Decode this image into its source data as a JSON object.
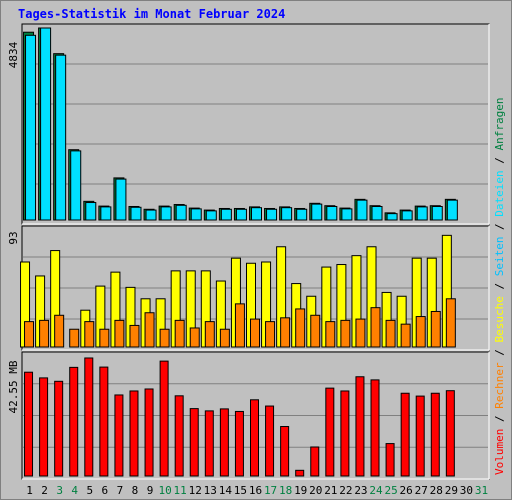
{
  "title": "Tages-Statistik im Monat Februar 2024",
  "days": [
    "1",
    "2",
    "3",
    "4",
    "5",
    "6",
    "7",
    "8",
    "9",
    "10",
    "11",
    "12",
    "13",
    "14",
    "15",
    "16",
    "17",
    "18",
    "19",
    "20",
    "21",
    "22",
    "23",
    "24",
    "25",
    "26",
    "27",
    "28",
    "29",
    "30",
    "31"
  ],
  "weekend_days": [
    "3",
    "4",
    "10",
    "11",
    "17",
    "18",
    "24",
    "25",
    "31"
  ],
  "right_legend": [
    "Volumen",
    "/",
    "Rechner",
    "/",
    "Besuche",
    "/",
    "Seiten",
    "/",
    "Dateien",
    "/",
    "Anfragen"
  ],
  "colors": {
    "background": "#c0c0c0",
    "plot_bg": "#c0c0c0",
    "anfragen": "#008040",
    "dateien": "#00e0ff",
    "seiten": "#00c0ff",
    "besuche": "#ffff00",
    "rechner": "#ff8000",
    "volumen": "#ff0000",
    "weekend_label": "#008040",
    "title": "#0000ff"
  },
  "chart_data": [
    {
      "type": "bar",
      "ylabel": "4834",
      "ylim": [
        0,
        4834
      ],
      "categories": [
        "1",
        "2",
        "3",
        "4",
        "5",
        "6",
        "7",
        "8",
        "9",
        "10",
        "11",
        "12",
        "13",
        "14",
        "15",
        "16",
        "17",
        "18",
        "19",
        "20",
        "21",
        "22",
        "23",
        "24",
        "25",
        "26",
        "27",
        "28",
        "29",
        "30",
        "31"
      ],
      "series": [
        {
          "name": "Anfragen",
          "values": [
            4728,
            4834,
            4188,
            1770,
            470,
            350,
            1060,
            340,
            270,
            350,
            390,
            300,
            250,
            290,
            290,
            330,
            290,
            330,
            290,
            420,
            360,
            300,
            520,
            360,
            180,
            250,
            350,
            360,
            520,
            null,
            null
          ]
        },
        {
          "name": "Dateien",
          "values": [
            4650,
            4834,
            4150,
            1740,
            440,
            330,
            1030,
            320,
            250,
            330,
            370,
            280,
            230,
            270,
            270,
            310,
            270,
            310,
            270,
            400,
            340,
            280,
            500,
            340,
            160,
            230,
            330,
            340,
            500,
            null,
            null
          ]
        }
      ]
    },
    {
      "type": "bar",
      "ylabel": "93",
      "ylim": [
        0,
        93
      ],
      "categories": [
        "1",
        "2",
        "3",
        "4",
        "5",
        "6",
        "7",
        "8",
        "9",
        "10",
        "11",
        "12",
        "13",
        "14",
        "15",
        "16",
        "17",
        "18",
        "19",
        "20",
        "21",
        "22",
        "23",
        "24",
        "25",
        "26",
        "27",
        "28",
        "29",
        "30",
        "31"
      ],
      "series": [
        {
          "name": "Seiten",
          "values": [
            67,
            56,
            76,
            0,
            29,
            48,
            59,
            47,
            38,
            38,
            60,
            60,
            60,
            52,
            70,
            66,
            67,
            79,
            50,
            40,
            63,
            65,
            72,
            79,
            43,
            40,
            70,
            70,
            88,
            null,
            null
          ]
        },
        {
          "name": "Besuche",
          "values": [
            67,
            56,
            76,
            0,
            29,
            48,
            59,
            47,
            38,
            38,
            60,
            60,
            60,
            52,
            70,
            66,
            67,
            79,
            50,
            40,
            63,
            65,
            72,
            79,
            43,
            40,
            70,
            70,
            88,
            null,
            null
          ]
        },
        {
          "name": "Rechner",
          "values": [
            20,
            21,
            25,
            14,
            20,
            14,
            21,
            17,
            27,
            14,
            21,
            15,
            20,
            14,
            34,
            22,
            20,
            23,
            30,
            25,
            20,
            21,
            22,
            31,
            21,
            18,
            24,
            28,
            38,
            null,
            null
          ]
        }
      ]
    },
    {
      "type": "bar",
      "ylabel": "42.55 MB",
      "ylim": [
        0,
        42.55
      ],
      "categories": [
        "1",
        "2",
        "3",
        "4",
        "5",
        "6",
        "7",
        "8",
        "9",
        "10",
        "11",
        "12",
        "13",
        "14",
        "15",
        "16",
        "17",
        "18",
        "19",
        "20",
        "21",
        "22",
        "23",
        "24",
        "25",
        "26",
        "27",
        "28",
        "29",
        "30",
        "31"
      ],
      "series": [
        {
          "name": "Volumen",
          "values": [
            36.5,
            34.5,
            33.3,
            38.2,
            41.5,
            38.3,
            28.5,
            29.9,
            30.6,
            40.4,
            28.2,
            23.7,
            22.9,
            23.6,
            22.7,
            26.8,
            24.6,
            17.4,
            2.0,
            10.2,
            30.9,
            29.9,
            34.9,
            33.8,
            11.4,
            29.1,
            28.1,
            29.1,
            30.0,
            null,
            null
          ]
        }
      ]
    }
  ]
}
